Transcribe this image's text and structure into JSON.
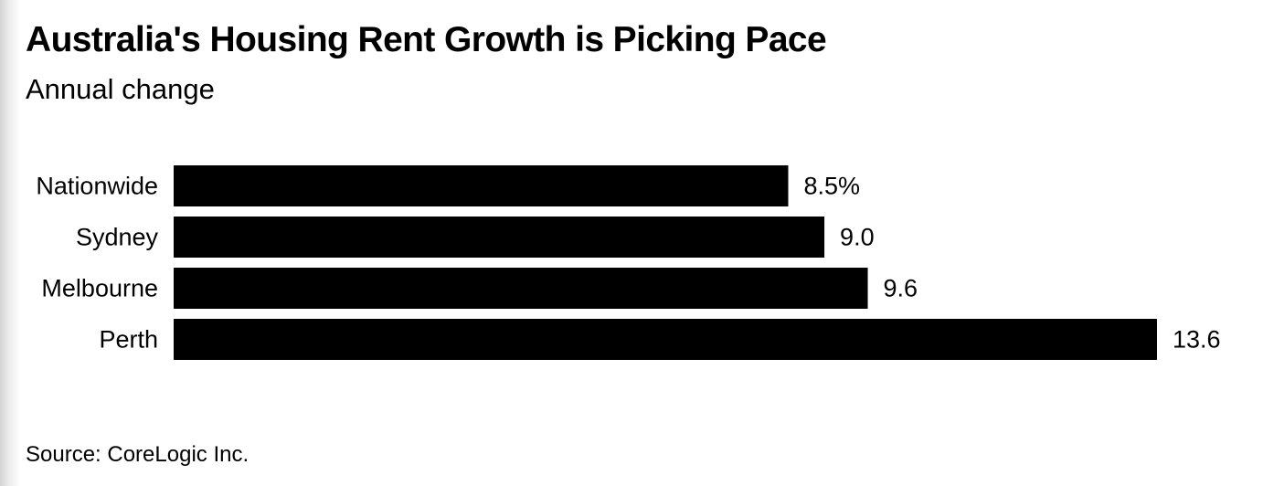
{
  "header": {
    "title": "Australia's Housing Rent Growth is Picking Pace",
    "subtitle": "Annual change"
  },
  "footer": {
    "source": "Source: CoreLogic Inc."
  },
  "chart_data": {
    "type": "bar",
    "orientation": "horizontal",
    "categories": [
      "Nationwide",
      "Sydney",
      "Melbourne",
      "Perth"
    ],
    "values": [
      8.5,
      9.0,
      9.6,
      13.6
    ],
    "value_labels": [
      "8.5%",
      "9.0",
      "9.6",
      "13.6"
    ],
    "title": "Australia's Housing Rent Growth is Picking Pace",
    "subtitle": "Annual change",
    "xlabel": "",
    "ylabel": "",
    "xlim": [
      0,
      13.6
    ],
    "grid": false,
    "legend": "none",
    "bar_color": "#000000"
  }
}
